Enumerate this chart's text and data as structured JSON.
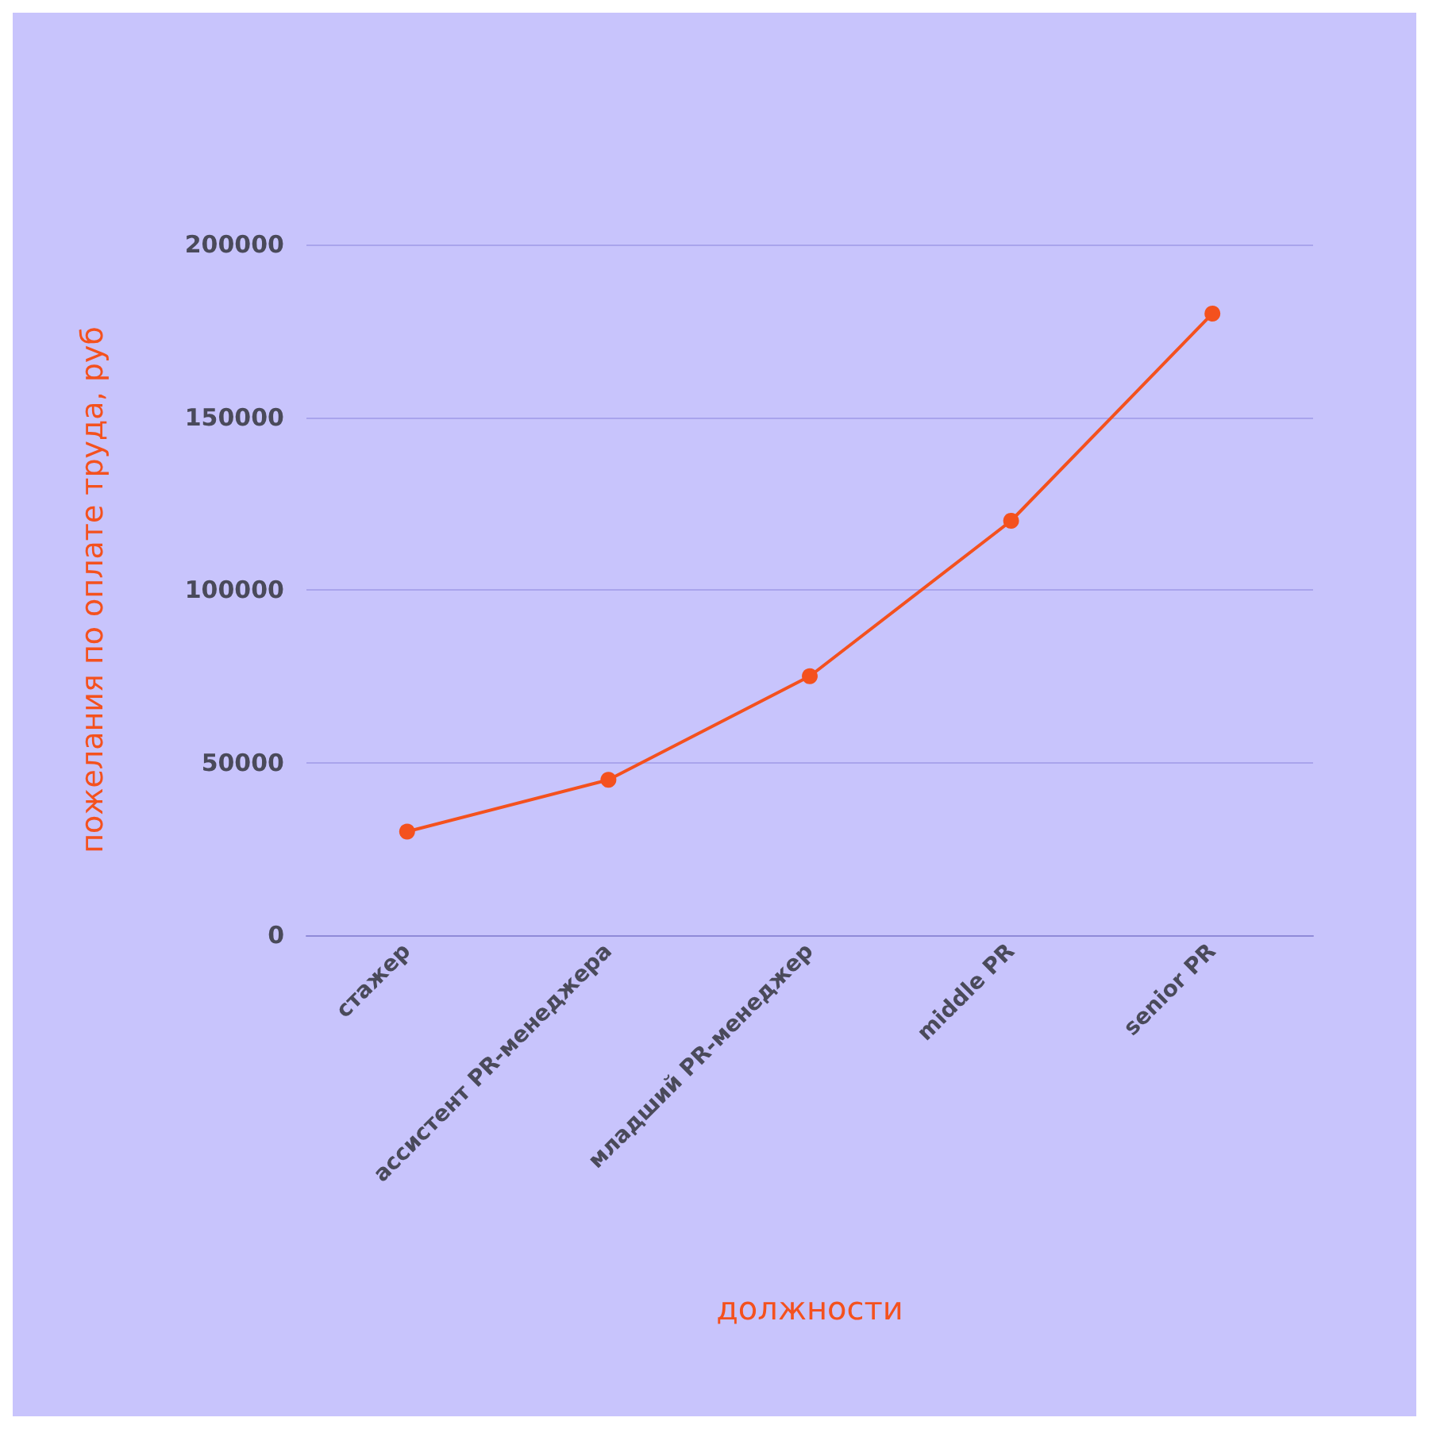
{
  "chart_data": {
    "type": "line",
    "xlabel": "должности",
    "ylabel": "пожелания по оплате труда, руб",
    "categories": [
      "стажер",
      "ассистент PR-менеджера",
      "младший PR-менеджер",
      "middle PR",
      "senior PR"
    ],
    "series": [
      {
        "color": "#f4511e",
        "values": [
          30000,
          45000,
          75000,
          120000,
          180000
        ]
      }
    ],
    "ylim": [
      0,
      200000
    ],
    "yticks": [
      0,
      50000,
      100000,
      150000,
      200000
    ],
    "grid": "y",
    "marker": "circle",
    "line_style": "solid"
  }
}
